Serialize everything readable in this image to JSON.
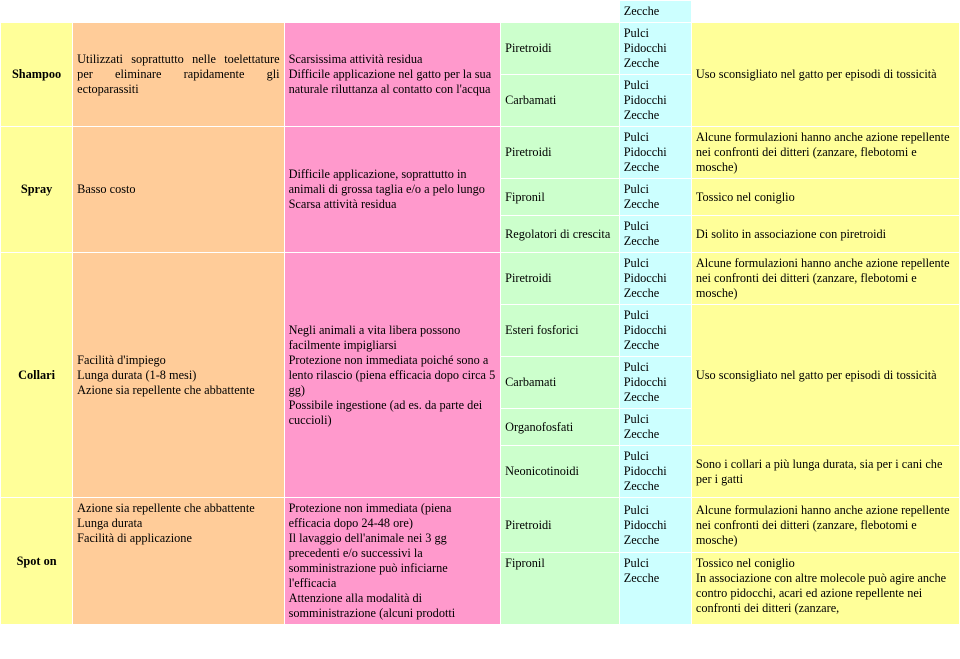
{
  "rows": {
    "r0_zecche": "Zecche",
    "shampoo": {
      "label": "Shampoo",
      "advantages": "Utilizzati soprattutto nelle toelettature per eliminare rapidamente gli ectoparassiti",
      "disadvantages": "Scarsissima attività residua\nDifficile applicazione nel gatto per la sua naturale riluttanza al contatto con l'acqua",
      "ing1": "Piretroidi",
      "targ1": "Pulci\nPidocchi\nZecche",
      "ing2": "Carbamati",
      "targ2": "Pulci\nPidocchi\nZecche",
      "note": "Uso sconsigliato nel gatto per episodi di tossicità"
    },
    "spray": {
      "label": "Spray",
      "advantages": "Basso costo",
      "disadvantages": "Difficile applicazione, soprattutto in animali di grossa taglia e/o a pelo lungo\nScarsa attività residua",
      "ing1": "Piretroidi",
      "targ1": "Pulci\nPidocchi\nZecche",
      "note1": "Alcune formulazioni hanno anche azione repellente nei confronti dei ditteri (zanzare, flebotomi e mosche)",
      "ing2": "Fipronil",
      "targ2": "Pulci\nZecche",
      "note2": "Tossico nel coniglio",
      "ing3": "Regolatori di crescita",
      "targ3": "Pulci\nZecche",
      "note3": "Di solito in associazione con piretroidi"
    },
    "collari": {
      "label": "Collari",
      "advantages": "Facilità d'impiego\nLunga durata (1-8 mesi)\nAzione sia repellente che abbattente",
      "disadvantages": "Negli animali a vita libera possono facilmente impigliarsi\nProtezione non immediata poiché sono a lento rilascio (piena efficacia dopo circa 5 gg)\nPossibile ingestione (ad es. da parte dei cuccioli)",
      "ing1": "Piretroidi",
      "targ1": "Pulci\nPidocchi\nZecche",
      "note1": "Alcune formulazioni hanno anche azione repellente nei confronti dei ditteri (zanzare, flebotomi e mosche)",
      "ing2": "Esteri fosforici",
      "targ2": "Pulci\nPidocchi\nZecche",
      "ing3": "Carbamati",
      "targ3": "Pulci\nPidocchi\nZecche",
      "note23": "Uso sconsigliato nel gatto per episodi di tossicità",
      "ing4": "Organofosfati",
      "targ4": "Pulci\nZecche",
      "ing5": "Neonicotinoidi",
      "targ5": "Pulci\nPidocchi\nZecche",
      "note5": "Sono i collari a più lunga durata, sia per i cani che per i gatti"
    },
    "spoton": {
      "label": "Spot on",
      "advantages": "Azione sia repellente che abbattente\nLunga durata\nFacilità di applicazione",
      "disadvantages": "Protezione non immediata (piena efficacia dopo 24-48 ore)\nIl lavaggio dell'animale nei 3 gg precedenti e/o successivi la somministrazione può inficiarne l'efficacia\nAttenzione alla modalità di somministrazione (alcuni prodotti",
      "ing1": "Piretroidi",
      "targ1": "Pulci\nPidocchi\nZecche",
      "note1": "Alcune formulazioni hanno anche azione repellente nei confronti dei ditteri (zanzare, flebotomi e mosche)",
      "ing2": "Fipronil",
      "targ2": "Pulci\nZecche",
      "note2": "Tossico nel coniglio\nIn associazione con altre molecole può agire anche contro pidocchi, acari ed azione repellente nei confronti dei ditteri (zanzare,"
    }
  },
  "colors": {
    "yellow": "#ffff99",
    "orange": "#ffcc99",
    "pink": "#ff99cc",
    "green": "#ccffcc",
    "blue": "#ccffff"
  },
  "font_family": "Times New Roman",
  "base_font_size_pt": 9
}
